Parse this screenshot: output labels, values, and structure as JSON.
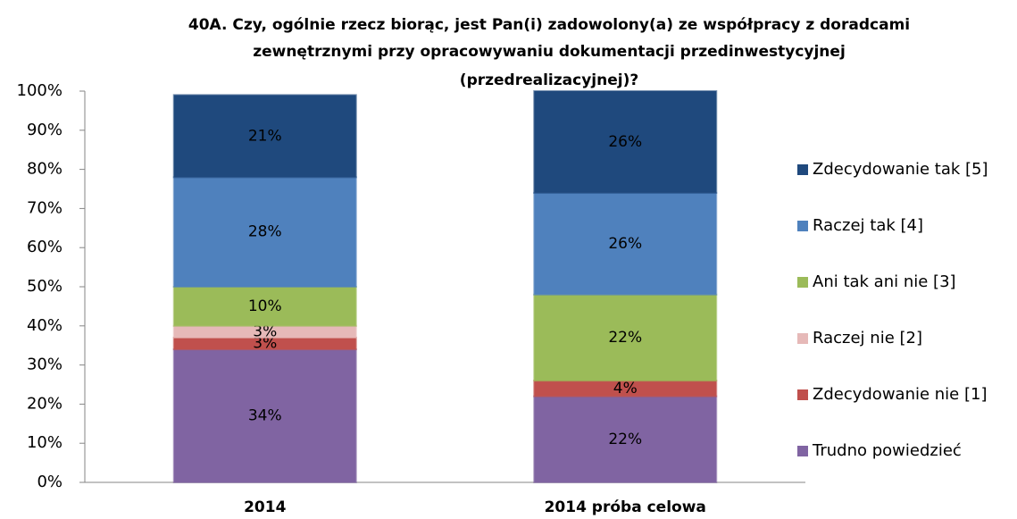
{
  "chart_data": {
    "type": "stacked_bar",
    "title": [
      "40A. Czy, ogólnie rzecz biorąc, jest Pan(i) zadowolony(a) ze współpracy z doradcami",
      "zewnętrznymi przy opracowywaniu dokumentacji przedinwestycyjnej",
      "(przedrealizacyjnej)?"
    ],
    "categories": [
      "2014",
      "2014 próba celowa"
    ],
    "series": [
      {
        "name": "Trudno powiedzieć",
        "color": "#8064a2",
        "values": [
          34,
          22
        ],
        "value_labels": [
          "34%",
          "22%"
        ]
      },
      {
        "name": "Zdecydowanie nie [1]",
        "color": "#c0504d",
        "values": [
          3,
          4
        ],
        "value_labels": [
          "3%",
          "4%"
        ]
      },
      {
        "name": "Raczej nie [2]",
        "color": "#e6b9b8",
        "values": [
          3,
          0
        ],
        "value_labels": [
          "3%",
          null
        ]
      },
      {
        "name": "Ani tak ani nie [3]",
        "color": "#9bbb59",
        "values": [
          10,
          22
        ],
        "value_labels": [
          "10%",
          "22%"
        ]
      },
      {
        "name": "Raczej tak [4]",
        "color": "#4f81bd",
        "values": [
          28,
          26
        ],
        "value_labels": [
          "28%",
          "26%"
        ]
      },
      {
        "name": "Zdecydowanie tak [5]",
        "color": "#1f497d",
        "values": [
          21,
          26
        ],
        "value_labels": [
          "21%",
          "26%"
        ]
      }
    ],
    "ylim": [
      0,
      100
    ],
    "yticks": [
      {
        "value": 0,
        "label": "0%"
      },
      {
        "value": 10,
        "label": "10%"
      },
      {
        "value": 20,
        "label": "20%"
      },
      {
        "value": 30,
        "label": "30%"
      },
      {
        "value": 40,
        "label": "40%"
      },
      {
        "value": 50,
        "label": "50%"
      },
      {
        "value": 60,
        "label": "60%"
      },
      {
        "value": 70,
        "label": "70%"
      },
      {
        "value": 80,
        "label": "80%"
      },
      {
        "value": 90,
        "label": "90%"
      },
      {
        "value": 100,
        "label": "100%"
      }
    ],
    "legend": "right"
  }
}
